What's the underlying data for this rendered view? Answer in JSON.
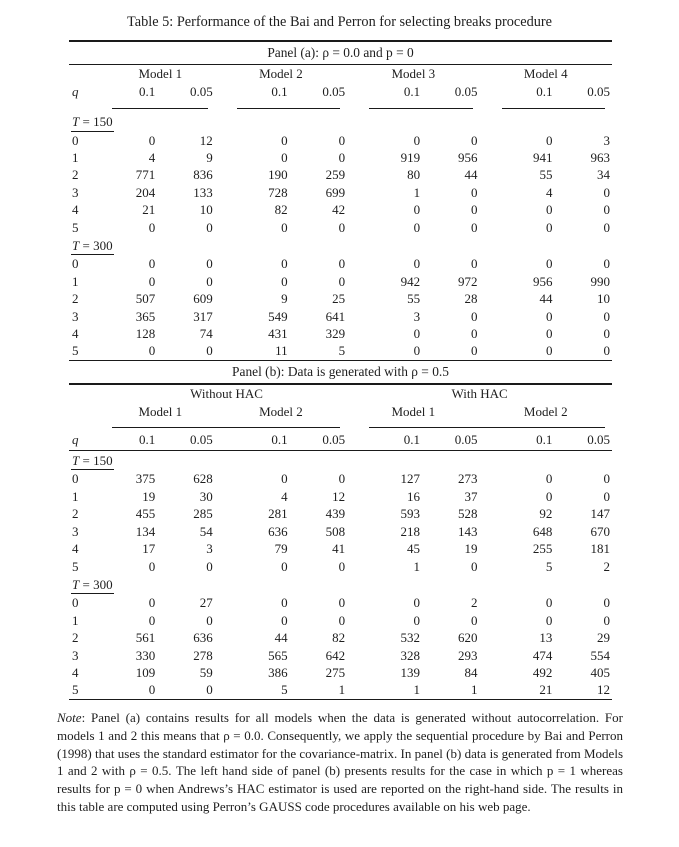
{
  "title": "Table 5: Performance of the Bai and Perron for selecting breaks procedure",
  "panel_a": {
    "header": "Panel (a): ρ = 0.0 and p = 0",
    "q_label": "q",
    "col_groups": [
      "Model 1",
      "Model 2",
      "Model 3",
      "Model 4"
    ],
    "alpha_levels": [
      "0.1",
      "0.05"
    ],
    "sections": [
      {
        "t_var": "T",
        "t_value": "= 150",
        "rows": [
          {
            "q": "0",
            "values": [
              0,
              12,
              0,
              0,
              0,
              0,
              0,
              3
            ]
          },
          {
            "q": "1",
            "values": [
              4,
              9,
              0,
              0,
              919,
              956,
              941,
              963
            ]
          },
          {
            "q": "2",
            "values": [
              771,
              836,
              190,
              259,
              80,
              44,
              55,
              34
            ]
          },
          {
            "q": "3",
            "values": [
              204,
              133,
              728,
              699,
              1,
              0,
              4,
              0
            ]
          },
          {
            "q": "4",
            "values": [
              21,
              10,
              82,
              42,
              0,
              0,
              0,
              0
            ]
          },
          {
            "q": "5",
            "values": [
              0,
              0,
              0,
              0,
              0,
              0,
              0,
              0
            ]
          }
        ]
      },
      {
        "t_var": "T",
        "t_value": "= 300",
        "rows": [
          {
            "q": "0",
            "values": [
              0,
              0,
              0,
              0,
              0,
              0,
              0,
              0
            ]
          },
          {
            "q": "1",
            "values": [
              0,
              0,
              0,
              0,
              942,
              972,
              956,
              990
            ]
          },
          {
            "q": "2",
            "values": [
              507,
              609,
              9,
              25,
              55,
              28,
              44,
              10
            ]
          },
          {
            "q": "3",
            "values": [
              365,
              317,
              549,
              641,
              3,
              0,
              0,
              0
            ]
          },
          {
            "q": "4",
            "values": [
              128,
              74,
              431,
              329,
              0,
              0,
              0,
              0
            ]
          },
          {
            "q": "5",
            "values": [
              0,
              0,
              11,
              5,
              0,
              0,
              0,
              0
            ]
          }
        ]
      }
    ]
  },
  "panel_b": {
    "header": "Panel (b): Data is generated with ρ = 0.5",
    "q_label": "q",
    "hac_groups": [
      "Without HAC",
      "With HAC"
    ],
    "col_groups": [
      "Model 1",
      "Model 2",
      "Model 1",
      "Model 2"
    ],
    "alpha_levels": [
      "0.1",
      "0.05"
    ],
    "sections": [
      {
        "t_var": "T",
        "t_value": "= 150",
        "rows": [
          {
            "q": "0",
            "values": [
              375,
              628,
              0,
              0,
              127,
              273,
              0,
              0
            ]
          },
          {
            "q": "1",
            "values": [
              19,
              30,
              4,
              12,
              16,
              37,
              0,
              0
            ]
          },
          {
            "q": "2",
            "values": [
              455,
              285,
              281,
              439,
              593,
              528,
              92,
              147
            ]
          },
          {
            "q": "3",
            "values": [
              134,
              54,
              636,
              508,
              218,
              143,
              648,
              670
            ]
          },
          {
            "q": "4",
            "values": [
              17,
              3,
              79,
              41,
              45,
              19,
              255,
              181
            ]
          },
          {
            "q": "5",
            "values": [
              0,
              0,
              0,
              0,
              1,
              0,
              5,
              2
            ]
          }
        ]
      },
      {
        "t_var": "T",
        "t_value": "= 300",
        "rows": [
          {
            "q": "0",
            "values": [
              0,
              27,
              0,
              0,
              0,
              2,
              0,
              0
            ]
          },
          {
            "q": "1",
            "values": [
              0,
              0,
              0,
              0,
              0,
              0,
              0,
              0
            ]
          },
          {
            "q": "2",
            "values": [
              561,
              636,
              44,
              82,
              532,
              620,
              13,
              29
            ]
          },
          {
            "q": "3",
            "values": [
              330,
              278,
              565,
              642,
              328,
              293,
              474,
              554
            ]
          },
          {
            "q": "4",
            "values": [
              109,
              59,
              386,
              275,
              139,
              84,
              492,
              405
            ]
          },
          {
            "q": "5",
            "values": [
              0,
              0,
              5,
              1,
              1,
              1,
              21,
              12
            ]
          }
        ]
      }
    ]
  },
  "note": {
    "label": "Note",
    "text": ": Panel (a) contains results for all models when the data is generated without autocorrelation. For models 1 and 2 this means that ρ = 0.0. Consequently, we apply the sequential procedure by Bai and Perron (1998) that uses the standard estimator for the covariance-matrix. In panel (b) data is generated from Models 1 and 2 with ρ = 0.5. The left hand side of panel (b) presents results for the case in which p = 1 whereas results for p = 0 when Andrews’s HAC estimator is used are reported on the right-hand side. The results in this table are computed using Perron’s GAUSS code procedures available on his web page."
  }
}
